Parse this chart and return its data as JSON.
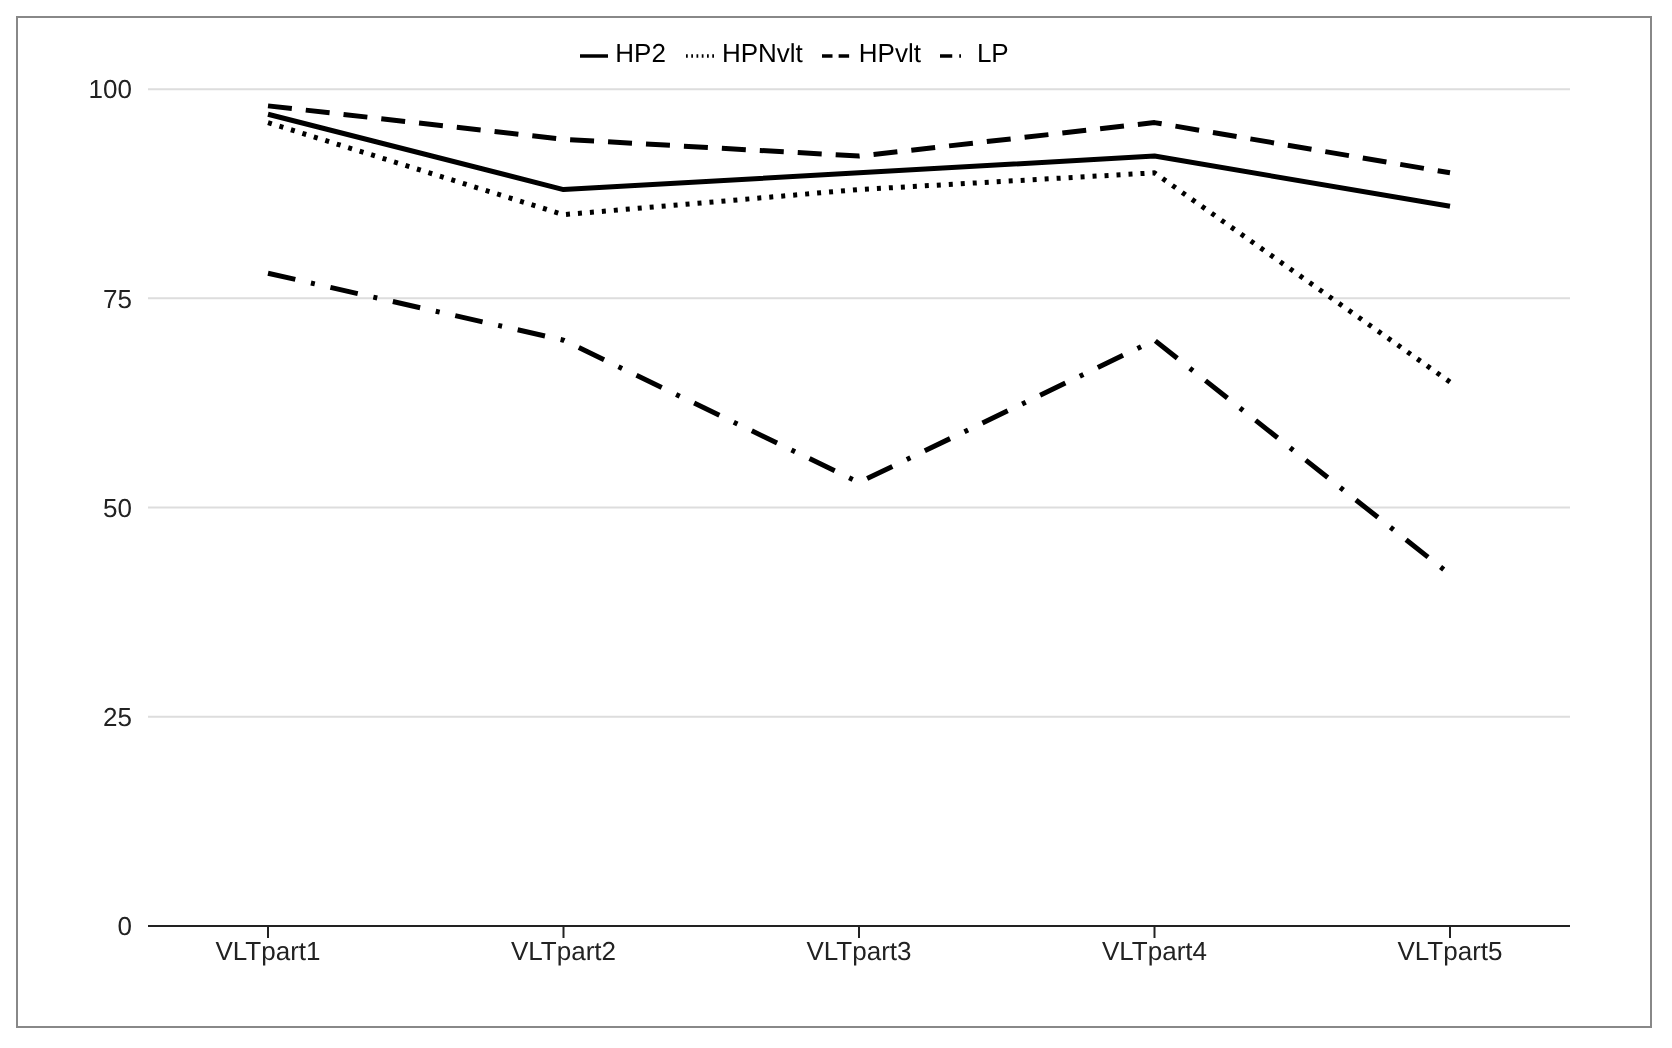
{
  "chart_data": {
    "type": "line",
    "categories": [
      "VLTpart1",
      "VLTpart2",
      "VLTpart3",
      "VLTpart4",
      "VLTpart5"
    ],
    "series": [
      {
        "name": "HP2",
        "color": "#000000",
        "line_style": "solid",
        "values": [
          97,
          88,
          90,
          92,
          86
        ]
      },
      {
        "name": "HPNvlt",
        "color": "#000000",
        "line_style": "dotted",
        "values": [
          96,
          85,
          88,
          90,
          65
        ]
      },
      {
        "name": "HPvlt",
        "color": "#000000",
        "line_style": "dashed",
        "values": [
          98,
          94,
          92,
          96,
          90
        ]
      },
      {
        "name": "LP",
        "color": "#000000",
        "line_style": "dashdot",
        "values": [
          78,
          70,
          53,
          70,
          42
        ]
      }
    ],
    "ylim": [
      0,
      100
    ],
    "yticks": [
      0,
      25,
      50,
      75,
      100
    ],
    "grid": "y",
    "legend": "top",
    "marker": "none"
  }
}
